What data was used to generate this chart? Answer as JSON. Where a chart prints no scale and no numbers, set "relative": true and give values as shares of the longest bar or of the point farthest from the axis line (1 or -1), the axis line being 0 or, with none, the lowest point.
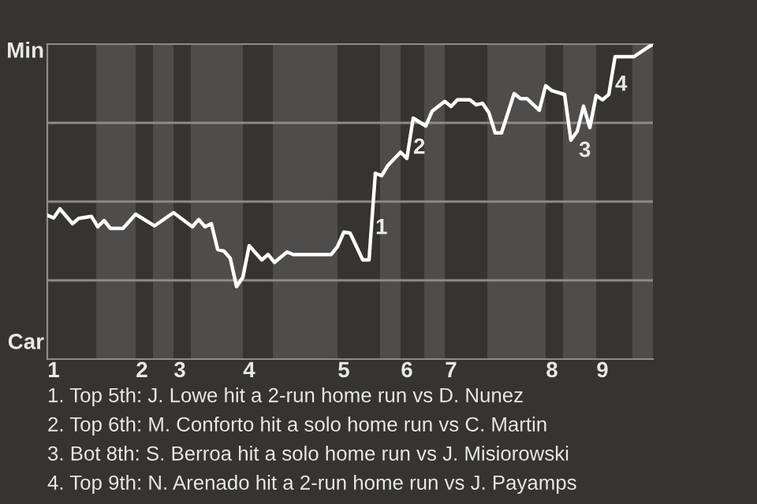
{
  "chart_data": {
    "type": "line",
    "categories": [
      null,
      "1",
      null,
      null,
      null,
      null,
      null,
      null,
      null,
      null,
      null,
      null,
      null,
      null,
      null,
      "2",
      null,
      null,
      null,
      null,
      null,
      "3",
      null,
      null,
      null,
      null,
      null,
      null,
      null,
      null,
      null,
      null,
      "4",
      null,
      null,
      null,
      null,
      null,
      null,
      null,
      null,
      null,
      null,
      null,
      null,
      null,
      null,
      "5",
      null,
      null,
      null,
      null,
      null,
      null,
      null,
      null,
      null,
      "6",
      null,
      null,
      null,
      null,
      null,
      null,
      "7",
      null,
      null,
      null,
      null,
      null,
      null,
      null,
      null,
      null,
      null,
      null,
      null,
      null,
      null,
      null,
      "8",
      null,
      null,
      null,
      null,
      null,
      null,
      null,
      "9",
      null,
      null,
      null,
      null,
      null,
      null,
      null,
      null
    ],
    "values": [
      0.457,
      0.448,
      0.477,
      null,
      0.43,
      0.447,
      null,
      0.453,
      0.42,
      0.44,
      0.415,
      null,
      0.415,
      null,
      0.46,
      null,
      null,
      0.423,
      null,
      null,
      0.465,
      null,
      null,
      0.42,
      0.443,
      0.42,
      0.43,
      0.348,
      0.343,
      0.32,
      0.23,
      0.26,
      0.36,
      null,
      0.315,
      0.332,
      0.307,
      null,
      0.34,
      0.332,
      null,
      null,
      null,
      null,
      null,
      0.332,
      0.357,
      0.403,
      0.4,
      null,
      0.315,
      0.315,
      0.59,
      0.582,
      0.615,
      null,
      0.657,
      0.637,
      0.765,
      null,
      0.74,
      0.787,
      null,
      0.818,
      0.802,
      0.823,
      null,
      0.823,
      0.807,
      0.812,
      0.782,
      0.718,
      0.718,
      null,
      0.843,
      0.827,
      0.827,
      null,
      0.79,
      0.868,
      0.852,
      null,
      0.84,
      0.695,
      0.723,
      0.803,
      0.735,
      0.837,
      0.823,
      0.84,
      0.96,
      null,
      null,
      0.96,
      null,
      0.987,
      1
    ],
    "color": "#ffffff",
    "relative": true,
    "ref_lines": [
      {
        "axis": "y",
        "value": 0.25,
        "color": "#8c8b89"
      },
      {
        "axis": "y",
        "value": 0.5,
        "color": "#8c8b89"
      },
      {
        "axis": "y",
        "value": 0.75,
        "color": "#8c8b89"
      }
    ],
    "annotations": [
      "Min",
      "Car",
      "1",
      "2",
      "3",
      "4",
      "1. Top 5th: J. Lowe hit a 2-run home run vs D. Nunez",
      "2. Top 6th: M. Conforto hit a solo home run vs C. Martin",
      "3. Bot 8th: S. Berroa hit a solo home run vs J. Misiorowski",
      "4. Top 9th: N. Arenado hit a 2-run home run vs J. Payamps"
    ],
    "marker": "none",
    "line_style": "solid",
    "legend": false
  }
}
